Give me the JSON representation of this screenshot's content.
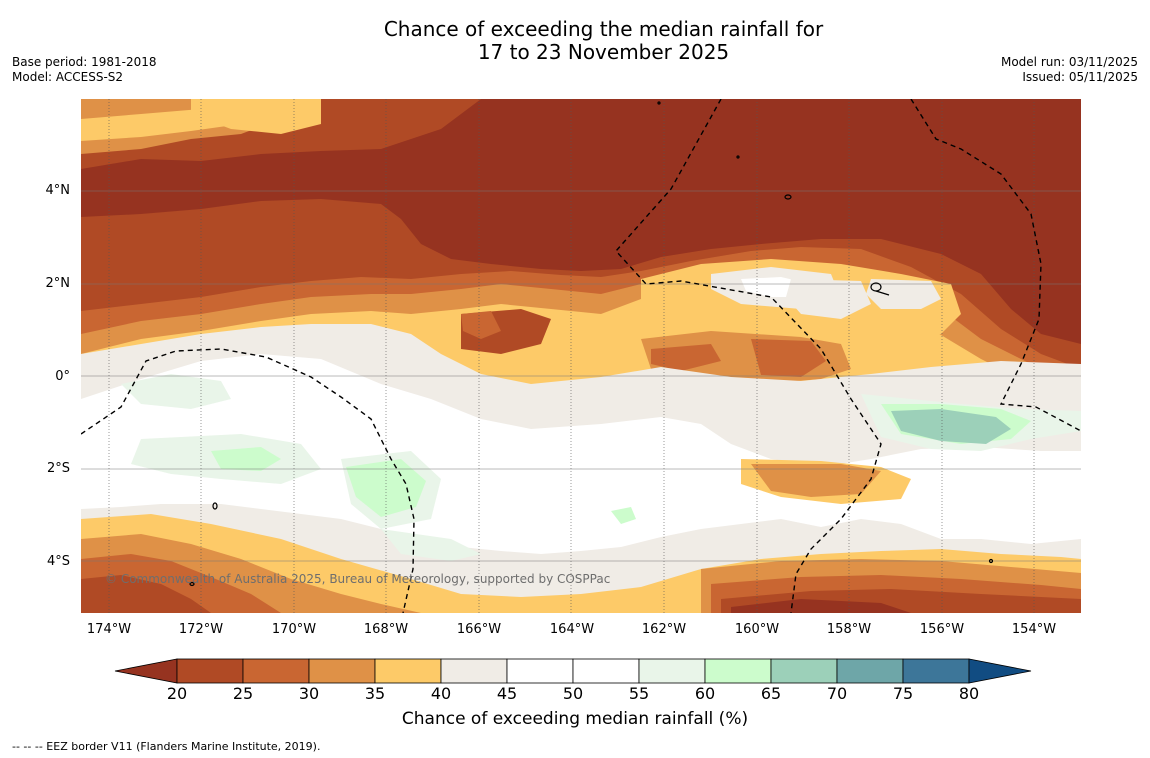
{
  "title": {
    "line1": "Chance of exceeding the median rainfall for",
    "line2": "17 to 23 November 2025"
  },
  "meta_left": {
    "base_period": "Base period: 1981-2018",
    "model": "Model: ACCESS-S2"
  },
  "meta_right": {
    "model_run": "Model run: 03/11/2025",
    "issued": "Issued: 05/11/2025"
  },
  "map": {
    "lat_labels": [
      "4°N",
      "2°N",
      "0°",
      "2°S",
      "4°S"
    ],
    "lon_labels": [
      "174°W",
      "172°W",
      "170°W",
      "168°W",
      "166°W",
      "164°W",
      "162°W",
      "160°W",
      "158°W",
      "156°W",
      "154°W"
    ],
    "copyright": "© Commonwealth of Australia 2025, Bureau of Meteorology, supported by COSPPac"
  },
  "colorbar": {
    "ticks": [
      "20",
      "25",
      "30",
      "35",
      "40",
      "45",
      "50",
      "55",
      "60",
      "65",
      "70",
      "75",
      "80"
    ],
    "colors": [
      "#963320",
      "#b04a25",
      "#c96632",
      "#df9147",
      "#fdca68",
      "#f0ece6",
      "#ffffff",
      "#ffffff",
      "#e9f5e9",
      "#ccfccc",
      "#9cd0b9",
      "#6ea6a8",
      "#3d7699",
      "#114c82"
    ],
    "label": "Chance of exceeding median rainfall (%)"
  },
  "legend": {
    "eez": "--  --  -- EEZ border V11 (Flanders Marine Institute, 2019)."
  }
}
